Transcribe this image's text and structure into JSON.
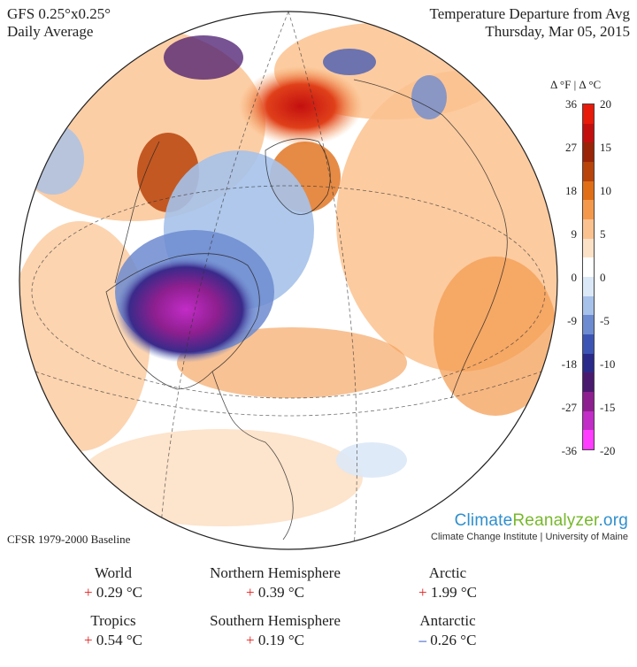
{
  "header": {
    "model": "GFS 0.25°x0.25°",
    "period": "Daily Average",
    "title": "Temperature Departure from Avg",
    "date": "Thursday, Mar 05, 2015"
  },
  "legend": {
    "title": "Δ °F  |  Δ °C",
    "f_ticks": [
      "36",
      "27",
      "18",
      "9",
      "0",
      "-9",
      "-18",
      "-27",
      "-36"
    ],
    "c_ticks": [
      "20",
      "15",
      "10",
      "5",
      "0",
      "-5",
      "-10",
      "-15",
      "-20"
    ],
    "colors": [
      "#ff3cff",
      "#c22cc7",
      "#8e1f8f",
      "#4a1a6f",
      "#2a2a8a",
      "#3c55b4",
      "#6d8bd0",
      "#a6c2ea",
      "#dbe8f7",
      "#ffffff",
      "#fde1c7",
      "#fbc28f",
      "#f4994c",
      "#e06e16",
      "#b8430b",
      "#9a2407",
      "#c40f0f",
      "#e81a0a"
    ]
  },
  "baseline": "CFSR 1979-2000 Baseline",
  "brand": {
    "part1": "Climate",
    "part2": "Reanalyzer",
    "part3": ".org",
    "sub": "Climate Change Institute | University of Maine"
  },
  "stats": [
    {
      "label": "World",
      "sign": "+",
      "value": "0.29 °C"
    },
    {
      "label": "Northern Hemisphere",
      "sign": "+",
      "value": "0.39 °C"
    },
    {
      "label": "Arctic",
      "sign": "+",
      "value": "1.99 °C"
    },
    {
      "label": "Tropics",
      "sign": "+",
      "value": "0.54 °C"
    },
    {
      "label": "Southern Hemisphere",
      "sign": "+",
      "value": "0.19 °C"
    },
    {
      "label": "Antarctic",
      "sign": "–",
      "value": "0.26 °C"
    }
  ]
}
